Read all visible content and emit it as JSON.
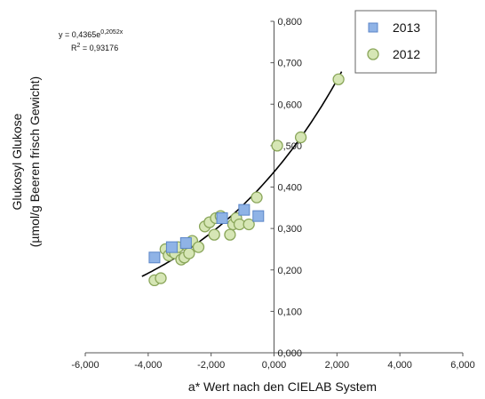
{
  "chart_data": {
    "type": "scatter",
    "xlabel": "a* Wert nach den CIELAB System",
    "ylabel_line1": "Glukosyl Glukose",
    "ylabel_line2": "(µmol/g Beeren frisch Gewicht)",
    "xlim": [
      -6000,
      6000
    ],
    "ylim": [
      0,
      0.8
    ],
    "x_ticks": [
      -6000,
      -4000,
      -2000,
      0,
      2000,
      4000,
      6000
    ],
    "x_tick_labels": [
      "-6,000",
      "-4,000",
      "-2,000",
      "0,000",
      "2,000",
      "4,000",
      "6,000"
    ],
    "y_ticks": [
      0,
      0.1,
      0.2,
      0.3,
      0.4,
      0.5,
      0.6,
      0.7,
      0.8
    ],
    "y_tick_labels": [
      "0,000",
      "0,100",
      "0,200",
      "0,300",
      "0,400",
      "0,500",
      "0,600",
      "0,700",
      "0,800"
    ],
    "grid": false,
    "legend_position": "top-right",
    "series": [
      {
        "name": "2013",
        "marker": "square",
        "color": "#8fb3e6",
        "edge": "#5b86c8",
        "points": [
          [
            -3800,
            0.23
          ],
          [
            -3250,
            0.255
          ],
          [
            -2800,
            0.265
          ],
          [
            -1650,
            0.325
          ],
          [
            -950,
            0.345
          ],
          [
            -500,
            0.33
          ]
        ]
      },
      {
        "name": "2012",
        "marker": "circle",
        "color": "#d6e6b5",
        "edge": "#8aa65a",
        "points": [
          [
            -3800,
            0.175
          ],
          [
            -3600,
            0.18
          ],
          [
            -3450,
            0.25
          ],
          [
            -3350,
            0.235
          ],
          [
            -3250,
            0.245
          ],
          [
            -3150,
            0.24
          ],
          [
            -3050,
            0.255
          ],
          [
            -2950,
            0.225
          ],
          [
            -2850,
            0.23
          ],
          [
            -2800,
            0.26
          ],
          [
            -2700,
            0.24
          ],
          [
            -2600,
            0.27
          ],
          [
            -2400,
            0.255
          ],
          [
            -2200,
            0.305
          ],
          [
            -2050,
            0.315
          ],
          [
            -1900,
            0.285
          ],
          [
            -1850,
            0.325
          ],
          [
            -1700,
            0.33
          ],
          [
            -1400,
            0.285
          ],
          [
            -1300,
            0.31
          ],
          [
            -1200,
            0.325
          ],
          [
            -1100,
            0.31
          ],
          [
            -800,
            0.31
          ],
          [
            -550,
            0.375
          ],
          [
            100,
            0.5
          ],
          [
            850,
            0.52
          ],
          [
            2050,
            0.66
          ]
        ]
      }
    ],
    "trendline": {
      "type": "exponential",
      "a": 0.4365,
      "b": 0.2052,
      "x_unit_scale": 1000,
      "x_range": [
        -4200,
        2150
      ],
      "color": "#000000"
    },
    "annotations": {
      "equation_base": "y = 0,4365e",
      "equation_exp": "0,2052x",
      "r2_prefix": "R",
      "r2_sup": "2",
      "r2_value": " = 0,93176"
    }
  }
}
